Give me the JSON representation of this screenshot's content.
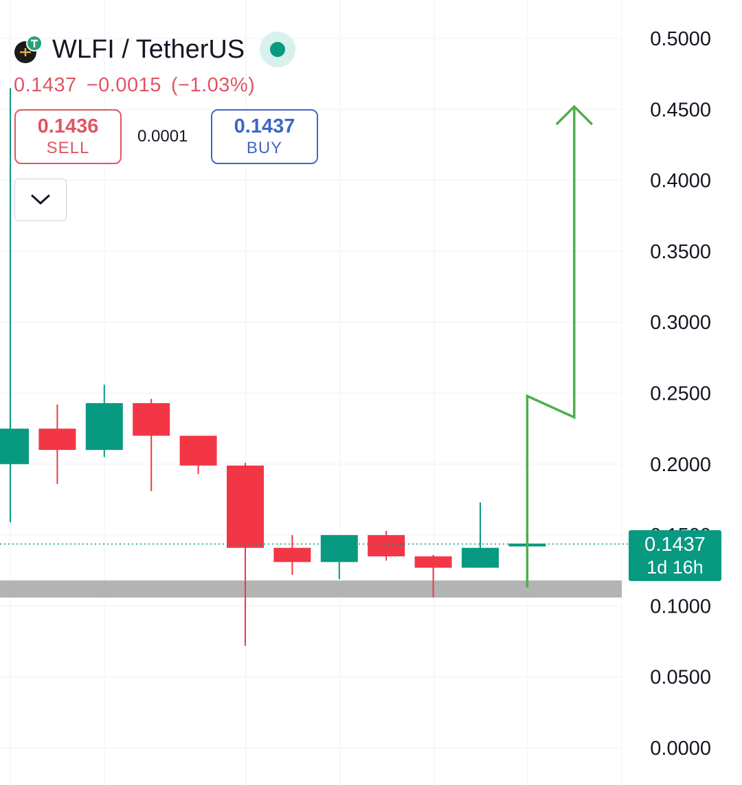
{
  "header": {
    "symbol_title": "WLFI / TetherUS",
    "last_price": "0.1437",
    "change": "−0.0015",
    "change_percent": "(−1.03%)",
    "logo_icon": "wlfi-coin-logo",
    "status": "market-open"
  },
  "trade": {
    "sell_price": "0.1436",
    "sell_label": "SELL",
    "spread": "0.0001",
    "buy_price": "0.1437",
    "buy_label": "BUY"
  },
  "price_tag": {
    "value": "0.1437",
    "countdown": "1d 16h"
  },
  "colors": {
    "up": "#089981",
    "down": "#f23645",
    "arrow": "#4caf50",
    "support_zone": "#b3b3b3",
    "grid": "#eef0f3"
  },
  "chart_data": {
    "type": "candlestick",
    "title": "",
    "y_axis_position": "right",
    "ylim": [
      0,
      0.5
    ],
    "y_ticks": [
      "0.5000",
      "0.4500",
      "0.4000",
      "0.3500",
      "0.3000",
      "0.2500",
      "0.2000",
      "0.1500",
      "0.1000",
      "0.0500",
      "0.0000"
    ],
    "grid": true,
    "candles": [
      {
        "open": 0.2,
        "high": 0.465,
        "low": 0.159,
        "close": 0.225
      },
      {
        "open": 0.225,
        "high": 0.242,
        "low": 0.186,
        "close": 0.21
      },
      {
        "open": 0.21,
        "high": 0.256,
        "low": 0.205,
        "close": 0.243
      },
      {
        "open": 0.243,
        "high": 0.246,
        "low": 0.181,
        "close": 0.22
      },
      {
        "open": 0.22,
        "high": 0.22,
        "low": 0.193,
        "close": 0.199
      },
      {
        "open": 0.199,
        "high": 0.201,
        "low": 0.072,
        "close": 0.141
      },
      {
        "open": 0.141,
        "high": 0.15,
        "low": 0.122,
        "close": 0.131
      },
      {
        "open": 0.131,
        "high": 0.15,
        "low": 0.119,
        "close": 0.15
      },
      {
        "open": 0.15,
        "high": 0.153,
        "low": 0.132,
        "close": 0.135
      },
      {
        "open": 0.135,
        "high": 0.136,
        "low": 0.106,
        "close": 0.127
      },
      {
        "open": 0.127,
        "high": 0.173,
        "low": 0.127,
        "close": 0.141
      },
      {
        "open": 0.142,
        "high": 0.146,
        "low": 0.113,
        "close": 0.144
      }
    ],
    "current_price_line": 0.1437,
    "support_zone": [
      0.106,
      0.118
    ],
    "projection_path": [
      {
        "candle": 11,
        "price": 0.113
      },
      {
        "candle": 11,
        "price": 0.248
      },
      {
        "candle": 12,
        "price": 0.233
      },
      {
        "candle": 12,
        "price": 0.452
      }
    ]
  }
}
